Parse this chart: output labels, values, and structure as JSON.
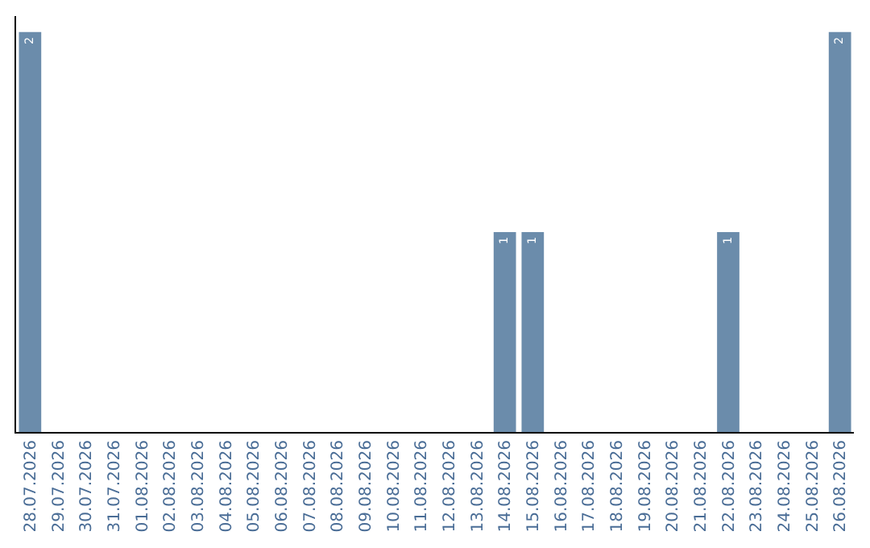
{
  "chart_data": {
    "type": "bar",
    "categories": [
      "28.07.2026",
      "29.07.2026",
      "30.07.2026",
      "31.07.2026",
      "01.08.2026",
      "02.08.2026",
      "03.08.2026",
      "04.08.2026",
      "05.08.2026",
      "06.08.2026",
      "07.08.2026",
      "08.08.2026",
      "09.08.2026",
      "10.08.2026",
      "11.08.2026",
      "12.08.2026",
      "13.08.2026",
      "14.08.2026",
      "15.08.2026",
      "16.08.2026",
      "17.08.2026",
      "18.08.2026",
      "19.08.2026",
      "20.08.2026",
      "21.08.2026",
      "22.08.2026",
      "23.08.2026",
      "24.08.2026",
      "25.08.2026",
      "26.08.2026"
    ],
    "values": [
      2,
      0,
      0,
      0,
      0,
      0,
      0,
      0,
      0,
      0,
      0,
      0,
      0,
      0,
      0,
      0,
      0,
      1,
      1,
      0,
      0,
      0,
      0,
      0,
      0,
      1,
      0,
      0,
      0,
      2
    ],
    "value_labels": [
      "2",
      null,
      null,
      null,
      null,
      null,
      null,
      null,
      null,
      null,
      null,
      null,
      null,
      null,
      null,
      null,
      null,
      "1",
      "1",
      null,
      null,
      null,
      null,
      null,
      null,
      "1",
      null,
      null,
      null,
      "2"
    ],
    "color": "#6b8cab",
    "grid": false
  }
}
